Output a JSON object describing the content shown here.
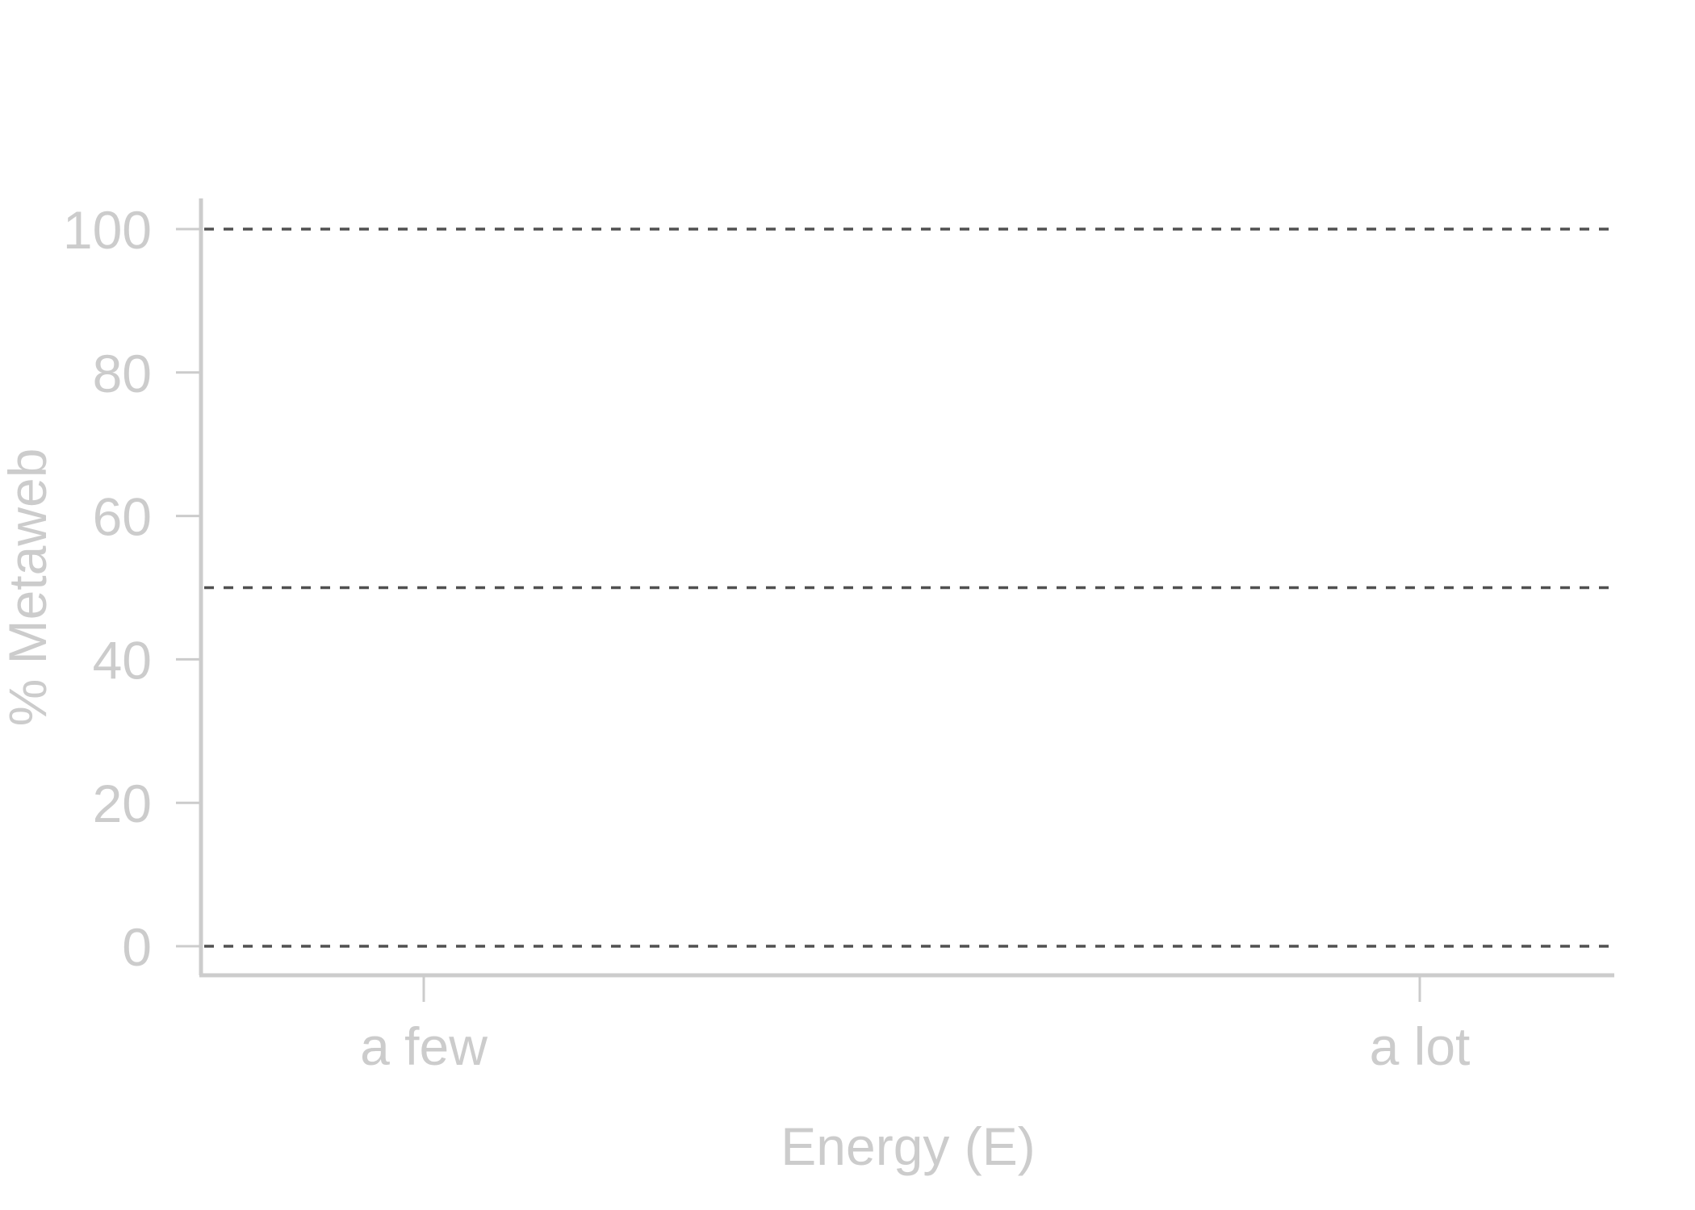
{
  "chart_data": {
    "type": "line",
    "title": "",
    "xlabel": "Energy (E)",
    "ylabel": "% Metaweb",
    "categories": [
      "a few",
      "a lot"
    ],
    "ylim": [
      0,
      100
    ],
    "yticks": [
      0,
      20,
      40,
      60,
      80,
      100
    ],
    "reference_lines": [
      0,
      50,
      100
    ],
    "grid": false,
    "colors": {
      "axis": "#cccccc",
      "reference_line": "#505050"
    }
  }
}
